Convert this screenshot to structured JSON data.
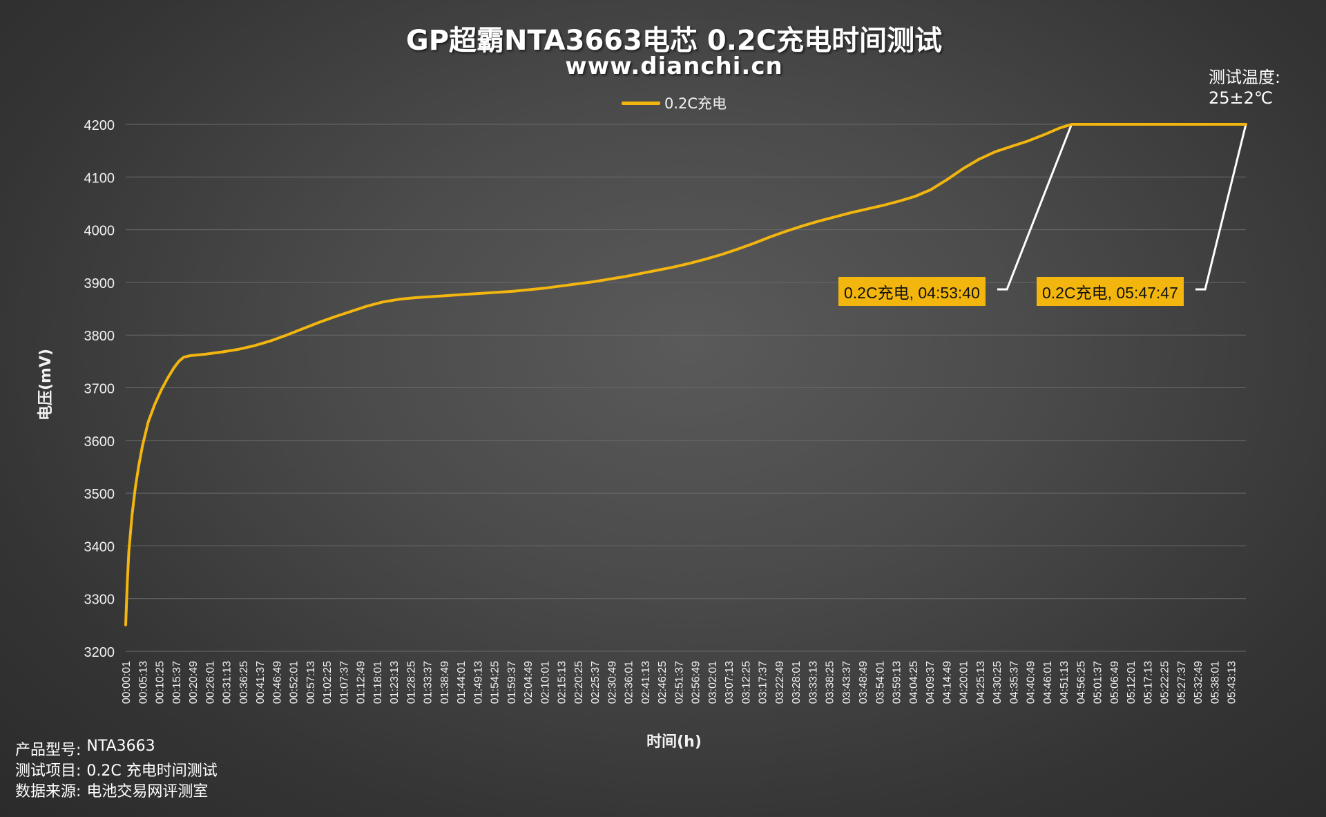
{
  "header": {
    "title": "GP超霸NTA3663电芯 0.2C充电时间测试",
    "subtitle": "www.dianchi.cn"
  },
  "temperature": {
    "label": "测试温度:",
    "value": "25±2℃"
  },
  "footer": {
    "model_label": "产品型号:",
    "model_value": "NTA3663",
    "item_label": "测试项目:",
    "item_value": "0.2C 充电时间测试",
    "source_label": "数据来源:",
    "source_value": "电池交易网评测室"
  },
  "colors": {
    "series": "#F2B60F",
    "background": "#474747",
    "grid": "#6a6a6a"
  },
  "chart_data": {
    "type": "line",
    "title": "GP超霸NTA3663电芯 0.2C充电时间测试",
    "subtitle": "www.dianchi.cn",
    "xlabel": "时间(h)",
    "ylabel": "电压(mV)",
    "ylim": [
      3200,
      4200
    ],
    "yticks": [
      3200,
      3300,
      3400,
      3500,
      3600,
      3700,
      3800,
      3900,
      4000,
      4100,
      4200
    ],
    "xlim": [
      "00:00:01",
      "05:47:47"
    ],
    "grid": true,
    "legend_position": "top-center",
    "x_tick_labels": [
      "00:00:01",
      "00:05:13",
      "00:10:25",
      "00:15:37",
      "00:20:49",
      "00:26:01",
      "00:31:13",
      "00:36:25",
      "00:41:37",
      "00:46:49",
      "00:52:01",
      "00:57:13",
      "01:02:25",
      "01:07:37",
      "01:12:49",
      "01:18:01",
      "01:23:13",
      "01:28:25",
      "01:33:37",
      "01:38:49",
      "01:44:01",
      "01:49:13",
      "01:54:25",
      "01:59:37",
      "02:04:49",
      "02:10:01",
      "02:15:13",
      "02:20:25",
      "02:25:37",
      "02:30:49",
      "02:36:01",
      "02:41:13",
      "02:46:25",
      "02:51:37",
      "02:56:49",
      "03:02:01",
      "03:07:13",
      "03:12:25",
      "03:17:37",
      "03:22:49",
      "03:28:01",
      "03:33:13",
      "03:38:25",
      "03:43:37",
      "03:48:49",
      "03:54:01",
      "03:59:13",
      "04:04:25",
      "04:09:37",
      "04:14:49",
      "04:20:01",
      "04:25:13",
      "04:30:25",
      "04:35:37",
      "04:40:49",
      "04:46:01",
      "04:51:13",
      "04:56:25",
      "05:01:37",
      "05:06:49",
      "05:12:01",
      "05:17:13",
      "05:22:25",
      "05:27:37",
      "05:32:49",
      "05:38:01",
      "05:43:13"
    ],
    "series": [
      {
        "name": "0.2C充电",
        "color": "#F2B60F",
        "points": [
          [
            "00:00:01",
            3250
          ],
          [
            "00:00:30",
            3330
          ],
          [
            "00:01:00",
            3390
          ],
          [
            "00:02:00",
            3460
          ],
          [
            "00:03:00",
            3510
          ],
          [
            "00:04:00",
            3550
          ],
          [
            "00:05:13",
            3590
          ],
          [
            "00:07:00",
            3635
          ],
          [
            "00:09:00",
            3668
          ],
          [
            "00:11:00",
            3695
          ],
          [
            "00:13:00",
            3718
          ],
          [
            "00:15:00",
            3738
          ],
          [
            "00:16:30",
            3750
          ],
          [
            "00:18:00",
            3758
          ],
          [
            "00:20:00",
            3761
          ],
          [
            "00:25:00",
            3764
          ],
          [
            "00:30:00",
            3768
          ],
          [
            "00:35:00",
            3773
          ],
          [
            "00:40:00",
            3780
          ],
          [
            "00:45:00",
            3789
          ],
          [
            "00:50:00",
            3800
          ],
          [
            "00:55:00",
            3812
          ],
          [
            "01:00:00",
            3824
          ],
          [
            "01:05:00",
            3835
          ],
          [
            "01:10:00",
            3845
          ],
          [
            "01:15:00",
            3855
          ],
          [
            "01:20:00",
            3863
          ],
          [
            "01:25:00",
            3868
          ],
          [
            "01:30:00",
            3871
          ],
          [
            "01:35:00",
            3873
          ],
          [
            "01:40:00",
            3875
          ],
          [
            "01:45:00",
            3877
          ],
          [
            "01:50:00",
            3879
          ],
          [
            "01:55:00",
            3881
          ],
          [
            "02:00:00",
            3883
          ],
          [
            "02:05:00",
            3886
          ],
          [
            "02:10:00",
            3889
          ],
          [
            "02:15:00",
            3893
          ],
          [
            "02:20:00",
            3897
          ],
          [
            "02:25:00",
            3901
          ],
          [
            "02:30:00",
            3906
          ],
          [
            "02:35:00",
            3911
          ],
          [
            "02:40:00",
            3917
          ],
          [
            "02:45:00",
            3923
          ],
          [
            "02:50:00",
            3929
          ],
          [
            "02:55:00",
            3936
          ],
          [
            "03:00:00",
            3944
          ],
          [
            "03:05:00",
            3953
          ],
          [
            "03:10:00",
            3963
          ],
          [
            "03:15:00",
            3974
          ],
          [
            "03:20:00",
            3986
          ],
          [
            "03:25:00",
            3997
          ],
          [
            "03:30:00",
            4007
          ],
          [
            "03:35:00",
            4016
          ],
          [
            "03:40:00",
            4024
          ],
          [
            "03:45:00",
            4032
          ],
          [
            "03:50:00",
            4039
          ],
          [
            "03:55:00",
            4046
          ],
          [
            "04:00:00",
            4054
          ],
          [
            "04:05:00",
            4063
          ],
          [
            "04:10:00",
            4076
          ],
          [
            "04:15:00",
            4095
          ],
          [
            "04:20:00",
            4116
          ],
          [
            "04:25:00",
            4134
          ],
          [
            "04:30:00",
            4148
          ],
          [
            "04:35:00",
            4158
          ],
          [
            "04:40:00",
            4168
          ],
          [
            "04:45:00",
            4180
          ],
          [
            "04:50:00",
            4193
          ],
          [
            "04:53:40",
            4200
          ],
          [
            "05:47:47",
            4200
          ]
        ]
      }
    ],
    "annotations": [
      {
        "text": "0.2C充电, 04:53:40",
        "x": "04:53:40",
        "y": 4200
      },
      {
        "text": "0.2C充电, 05:47:47",
        "x": "05:47:47",
        "y": 4200
      }
    ]
  }
}
